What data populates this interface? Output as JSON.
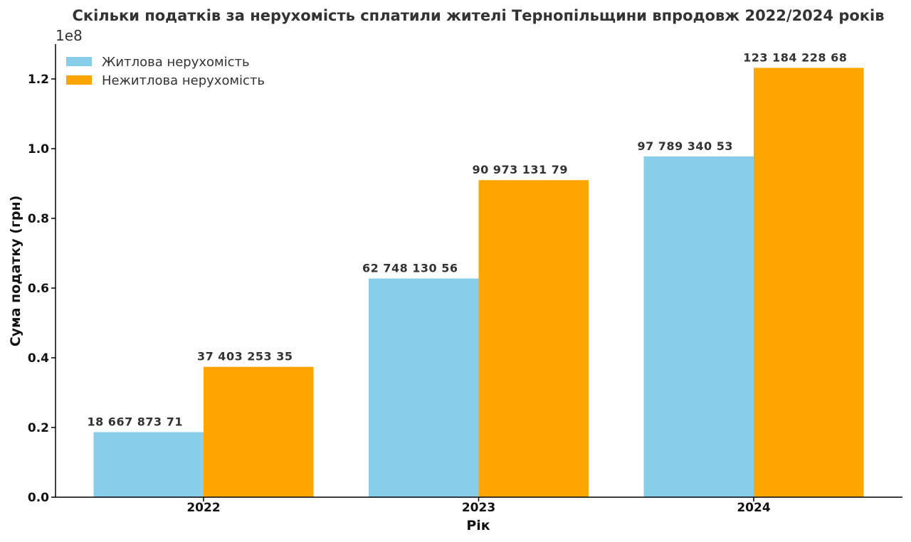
{
  "chart_data": {
    "type": "bar",
    "title": "Скільки податків за нерухомість сплатили жителі Тернопільщини впродовж 2022/2024 років",
    "xlabel": "Рік",
    "ylabel": "Сума податку (грн)",
    "y_offset_label": "1e8",
    "categories": [
      "2022",
      "2023",
      "2024"
    ],
    "ylim": [
      0,
      130000000
    ],
    "yticks": [
      0,
      20000000,
      40000000,
      60000000,
      80000000,
      100000000,
      120000000
    ],
    "ytick_labels": [
      "0.0",
      "0.2",
      "0.4",
      "0.6",
      "0.8",
      "1.0",
      "1.2"
    ],
    "grid": false,
    "legend_position": "top-left",
    "series": [
      {
        "name": "Житлова нерухомість",
        "color": "#87CEEB",
        "values": [
          18667873.71,
          62748130.56,
          97789340.53
        ],
        "labels": [
          "18 667 873 71",
          "62 748 130 56",
          "97 789 340 53"
        ]
      },
      {
        "name": "Нежитлова нерухомість",
        "color": "#FFA500",
        "values": [
          37403253.35,
          90973131.79,
          123184228.68
        ],
        "labels": [
          "37 403 253 35",
          "90 973 131 79",
          "123 184 228 68"
        ]
      }
    ]
  }
}
